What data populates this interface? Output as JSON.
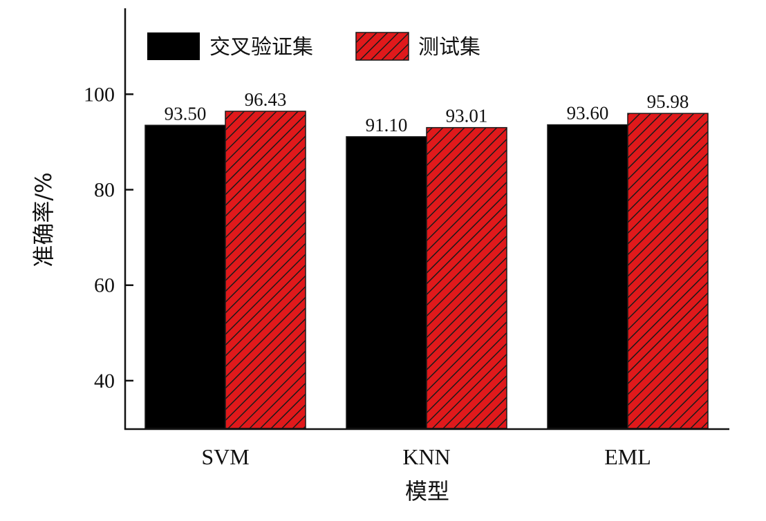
{
  "chart_data": {
    "type": "bar",
    "categories": [
      "SVM",
      "KNN",
      "EML"
    ],
    "series": [
      {
        "name": "交叉验证集",
        "values": [
          93.5,
          91.1,
          93.6
        ],
        "value_labels": [
          "93.50",
          "91.10",
          "93.60"
        ],
        "color": "#000000",
        "pattern": "solid"
      },
      {
        "name": "测试集",
        "values": [
          96.43,
          93.01,
          95.98
        ],
        "value_labels": [
          "96.43",
          "93.01",
          "95.98"
        ],
        "color": "#e0191b",
        "pattern": "hatched"
      }
    ],
    "title": "",
    "xlabel": "模型",
    "ylabel": "准确率/%",
    "ylim": [
      30,
      118
    ],
    "yticks": [
      40,
      60,
      80,
      100
    ],
    "ytick_labels": [
      "40",
      "60",
      "80",
      "100"
    ],
    "grid": false,
    "legend_position": "top-left"
  }
}
